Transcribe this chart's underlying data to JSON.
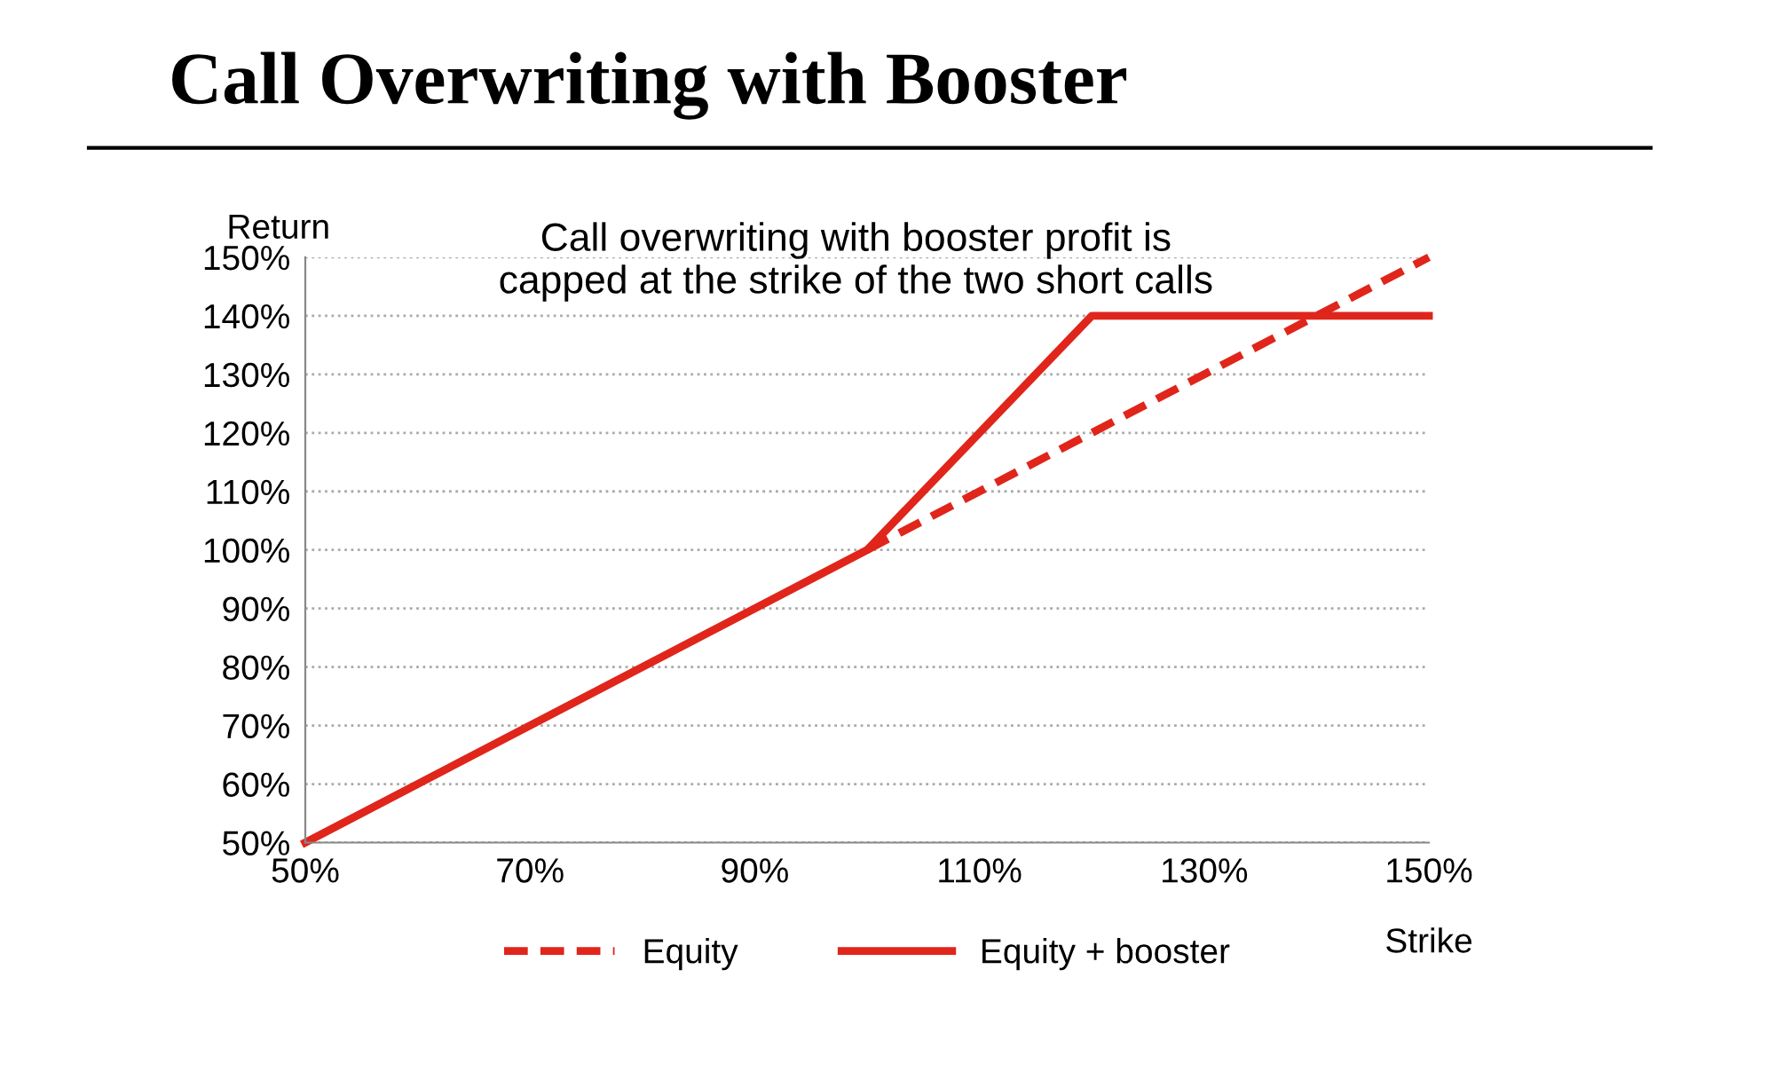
{
  "chart_data": {
    "type": "line",
    "title": "Call Overwriting with Booster",
    "ylabel": "Return",
    "xlabel": "Strike",
    "annotations": [
      "Call overwriting with booster profit is\ncapped at the strike of the two short calls"
    ],
    "x": [
      50,
      100,
      120,
      150
    ],
    "series": [
      {
        "name": "Equity",
        "color": "#e0251b",
        "line_style": "dashed",
        "values": [
          null,
          100,
          120,
          150
        ]
      },
      {
        "name": "Equity + booster",
        "color": "#e0251b",
        "line_style": "solid",
        "values": [
          50,
          100,
          140,
          140
        ]
      }
    ],
    "xlim": [
      50,
      150
    ],
    "xticks": [
      {
        "value": 50,
        "label": "50%"
      },
      {
        "value": 70,
        "label": "70%"
      },
      {
        "value": 90,
        "label": "90%"
      },
      {
        "value": 110,
        "label": "110%"
      },
      {
        "value": 130,
        "label": "130%"
      },
      {
        "value": 150,
        "label": "150%"
      }
    ],
    "ylim": [
      50,
      150
    ],
    "yticks": [
      {
        "value": 50,
        "label": "50%"
      },
      {
        "value": 60,
        "label": "60%"
      },
      {
        "value": 70,
        "label": "70%"
      },
      {
        "value": 80,
        "label": "80%"
      },
      {
        "value": 90,
        "label": "90%"
      },
      {
        "value": 100,
        "label": "100%"
      },
      {
        "value": 110,
        "label": "110%"
      },
      {
        "value": 120,
        "label": "120%"
      },
      {
        "value": 130,
        "label": "130%"
      },
      {
        "value": 140,
        "label": "140%"
      },
      {
        "value": 150,
        "label": "150%"
      }
    ],
    "grid": "y",
    "legend": "bottom",
    "marker": "none"
  }
}
